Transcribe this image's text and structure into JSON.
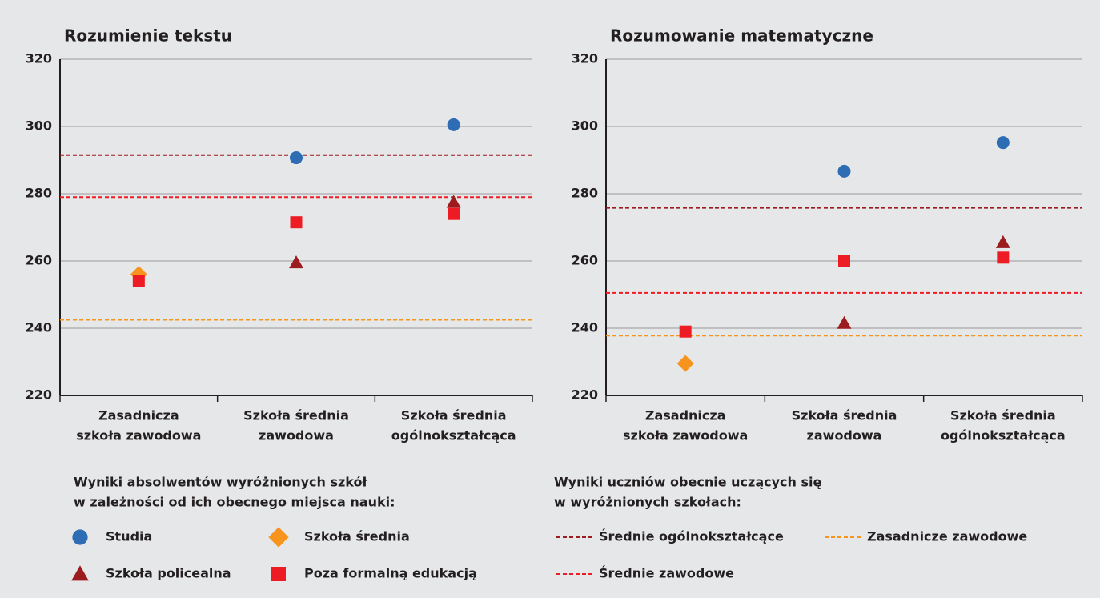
{
  "chart_data": [
    {
      "type": "scatter",
      "title": "Rozumienie tekstu",
      "categories": [
        [
          "Zasadnicza",
          "szkoła zawodowa"
        ],
        [
          "Szkoła średnia",
          "zawodowa"
        ],
        [
          "Szkoła średnia",
          "ogólnokształcąca"
        ]
      ],
      "ylim": [
        220,
        320
      ],
      "yticks": [
        220,
        240,
        260,
        280,
        300,
        320
      ],
      "grid": true,
      "series": [
        {
          "name": "Studia",
          "color": "#2e6db4",
          "marker": "circle",
          "values": [
            null,
            290.7,
            300.5
          ]
        },
        {
          "name": "Szkoła średnia",
          "color": "#f7941d",
          "marker": "diamond",
          "values": [
            256,
            null,
            null
          ]
        },
        {
          "name": "Szkoła policealna",
          "color": "#9b1b1f",
          "marker": "triangle",
          "values": [
            null,
            259.5,
            277.5
          ]
        },
        {
          "name": "Poza formalną edukacją",
          "color": "#ed1c24",
          "marker": "square",
          "values": [
            254,
            271.5,
            274
          ]
        }
      ],
      "reference_lines": [
        {
          "name": "Średnie ogólnokształcące",
          "color": "#9b1b1f",
          "value": 291.5
        },
        {
          "name": "Średnie zawodowe",
          "color": "#ed1c24",
          "value": 279
        },
        {
          "name": "Zasadnicze zawodowe",
          "color": "#f7941d",
          "value": 242.5
        }
      ]
    },
    {
      "type": "scatter",
      "title": "Rozumowanie matematyczne",
      "categories": [
        [
          "Zasadnicza",
          "szkoła zawodowa"
        ],
        [
          "Szkoła średnia",
          "zawodowa"
        ],
        [
          "Szkoła średnia",
          "ogólnokształcąca"
        ]
      ],
      "ylim": [
        220,
        320
      ],
      "yticks": [
        220,
        240,
        260,
        280,
        300,
        320
      ],
      "grid": true,
      "series": [
        {
          "name": "Studia",
          "color": "#2e6db4",
          "marker": "circle",
          "values": [
            null,
            286.7,
            295.2
          ]
        },
        {
          "name": "Szkoła średnia",
          "color": "#f7941d",
          "marker": "diamond",
          "values": [
            229.5,
            null,
            null
          ]
        },
        {
          "name": "Szkoła policealna",
          "color": "#9b1b1f",
          "marker": "triangle",
          "values": [
            null,
            241.5,
            265.5
          ]
        },
        {
          "name": "Poza formalną edukacją",
          "color": "#ed1c24",
          "marker": "square",
          "values": [
            239,
            260,
            261
          ]
        }
      ],
      "reference_lines": [
        {
          "name": "Średnie ogólnokształcące",
          "color": "#9b1b1f",
          "value": 275.8
        },
        {
          "name": "Średnie zawodowe",
          "color": "#ed1c24",
          "value": 250.5
        },
        {
          "name": "Zasadnicze zawodowe",
          "color": "#f7941d",
          "value": 237.8
        }
      ]
    }
  ],
  "legend_points": {
    "title": [
      "Wyniki absolwentów wyróżnionych szkół",
      "w zależności od ich obecnego miejsca nauki:"
    ]
  },
  "legend_lines": {
    "title": [
      "Wyniki uczniów obecnie uczących się",
      "w wyróżnionych szkołach:"
    ]
  }
}
